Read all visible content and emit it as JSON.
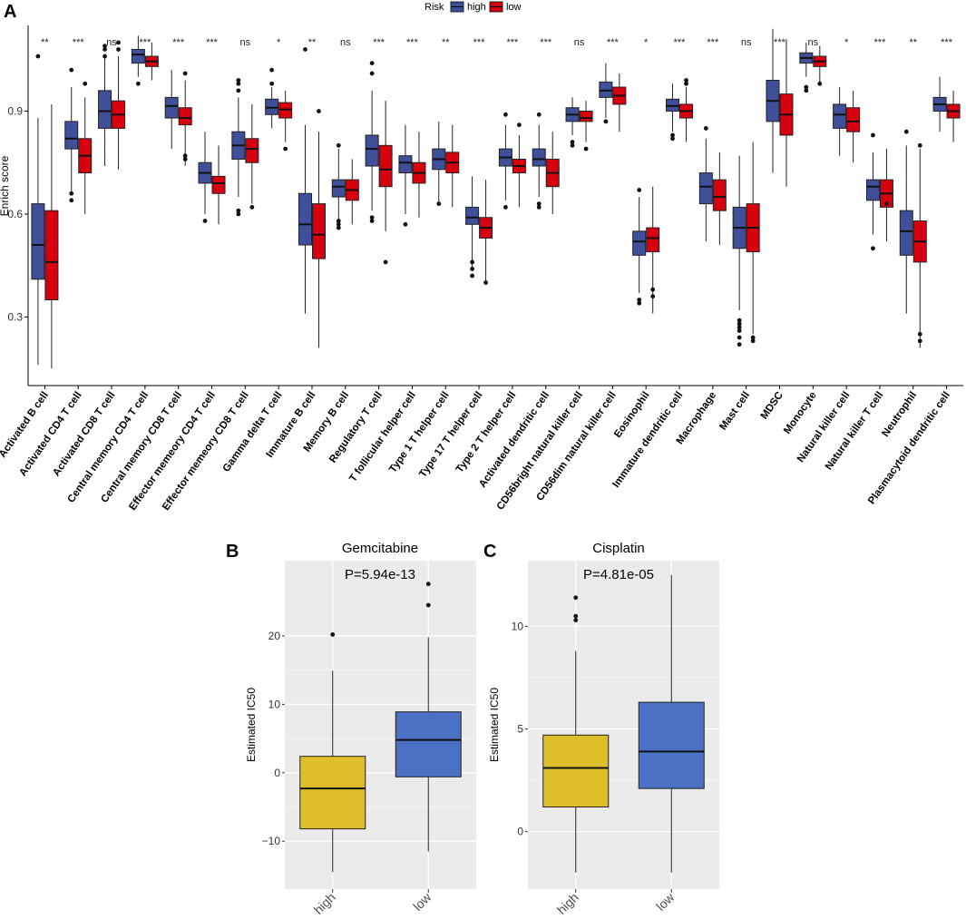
{
  "panel_labels": {
    "a": "A",
    "b": "B",
    "c": "C"
  },
  "colors": {
    "high": "#3F4F9A",
    "low": "#D7000F",
    "gem_high": "#DEBF2A",
    "gem_low": "#4A71C4",
    "panel_bg": "#EBEBEB"
  },
  "chart_data": [
    {
      "type": "boxplot",
      "title": "",
      "xlabel": "",
      "ylabel": "Enrich score",
      "ylim": [
        0.1,
        1.15
      ],
      "yticks": [
        0.3,
        0.6,
        0.9
      ],
      "yticklabels": [
        "0.3",
        "0.6",
        "0.9"
      ],
      "legend": {
        "title": "Risk",
        "entries": [
          "high",
          "low"
        ],
        "position": "top"
      },
      "categories": [
        "Activated B cell",
        "Activated CD4 T cell",
        "Activated CD8 T cell",
        "Central memory CD4 T cell",
        "Central memory CD8 T cell",
        "Effector memeory CD4 T cell",
        "Effector memeory CD8 T cell",
        "Gamma delta T cell",
        "Immature  B cell",
        "Memory B cell",
        "Regulatory T cell",
        "T follicular helper cell",
        "Type 1 T helper cell",
        "Type 17 T helper cell",
        "Type 2 T helper cell",
        "Activated dendritic cell",
        "CD56bright natural killer cell",
        "CD56dim natural killer cell",
        "Eosinophil",
        "Immature dendritic cell",
        "Macrophage",
        "Mast cell",
        "MDSC",
        "Monocyte",
        "Natural killer cell",
        "Natural killer T cell",
        "Neutrophil",
        "Plasmacytoid dendritic cell"
      ],
      "significance": [
        "**",
        "***",
        "ns",
        "***",
        "***",
        "***",
        "ns",
        "*",
        "**",
        "ns",
        "***",
        "***",
        "**",
        "***",
        "***",
        "***",
        "ns",
        "***",
        "*",
        "***",
        "***",
        "ns",
        "***",
        "ns",
        "*",
        "***",
        "**",
        "***"
      ],
      "series": [
        {
          "name": "high",
          "boxes": [
            [
              0.16,
              0.41,
              0.51,
              0.63,
              0.88
            ],
            [
              0.66,
              0.79,
              0.82,
              0.87,
              0.97
            ],
            [
              0.74,
              0.85,
              0.9,
              0.96,
              1.06
            ],
            [
              1.0,
              1.04,
              1.065,
              1.08,
              1.12
            ],
            [
              0.79,
              0.88,
              0.915,
              0.94,
              1.02
            ],
            [
              0.6,
              0.69,
              0.72,
              0.75,
              0.84
            ],
            [
              0.65,
              0.76,
              0.8,
              0.84,
              0.94
            ],
            [
              0.85,
              0.89,
              0.91,
              0.935,
              0.97
            ],
            [
              0.31,
              0.51,
              0.57,
              0.66,
              0.86
            ],
            [
              0.57,
              0.65,
              0.68,
              0.7,
              0.79
            ],
            [
              0.61,
              0.74,
              0.79,
              0.83,
              0.96
            ],
            [
              0.6,
              0.72,
              0.75,
              0.77,
              0.86
            ],
            [
              0.63,
              0.73,
              0.76,
              0.79,
              0.87
            ],
            [
              0.44,
              0.57,
              0.59,
              0.62,
              0.71
            ],
            [
              0.64,
              0.74,
              0.765,
              0.79,
              0.86
            ],
            [
              0.65,
              0.74,
              0.76,
              0.79,
              0.86
            ],
            [
              0.83,
              0.87,
              0.89,
              0.91,
              0.94
            ],
            [
              0.88,
              0.94,
              0.96,
              0.985,
              1.04
            ],
            [
              0.37,
              0.48,
              0.52,
              0.55,
              0.65
            ],
            [
              0.84,
              0.9,
              0.915,
              0.935,
              0.98
            ],
            [
              0.52,
              0.63,
              0.68,
              0.72,
              0.82
            ],
            [
              0.32,
              0.5,
              0.56,
              0.62,
              0.77
            ],
            [
              0.72,
              0.87,
              0.93,
              0.99,
              1.14
            ],
            [
              1.0,
              1.04,
              1.055,
              1.07,
              1.1
            ],
            [
              0.77,
              0.85,
              0.89,
              0.92,
              0.97
            ],
            [
              0.54,
              0.64,
              0.68,
              0.7,
              0.78
            ],
            [
              0.31,
              0.48,
              0.55,
              0.61,
              0.8
            ],
            [
              0.84,
              0.9,
              0.92,
              0.94,
              1.0
            ]
          ],
          "outliers": [
            [
              1.06
            ],
            [
              0.64,
              0.66,
              1.02
            ],
            [
              1.06,
              1.08,
              1.09
            ],
            [
              0.98
            ],
            [],
            [
              0.58
            ],
            [
              0.6,
              0.61,
              0.96,
              0.98,
              0.99
            ],
            [
              0.98,
              1.02
            ],
            [
              1.08
            ],
            [
              0.56,
              0.57,
              0.58,
              0.8
            ],
            [
              0.58,
              0.59,
              1.01,
              1.04
            ],
            [
              0.57
            ],
            [
              0.63
            ],
            [
              0.42,
              0.44,
              0.46
            ],
            [
              0.62,
              0.89
            ],
            [
              0.62,
              0.63,
              0.89
            ],
            [
              0.8,
              0.81
            ],
            [
              0.87
            ],
            [
              0.34,
              0.35,
              0.67
            ],
            [
              0.82,
              0.83
            ],
            [
              0.85
            ],
            [
              0.22,
              0.24,
              0.26,
              0.27,
              0.28,
              0.29
            ],
            [],
            [
              0.96,
              0.97
            ],
            [],
            [
              0.5,
              0.83
            ],
            [
              0.84
            ],
            []
          ]
        },
        {
          "name": "low",
          "boxes": [
            [
              0.15,
              0.35,
              0.46,
              0.61,
              0.92
            ],
            [
              0.6,
              0.72,
              0.77,
              0.82,
              0.94
            ],
            [
              0.73,
              0.85,
              0.89,
              0.93,
              1.06
            ],
            [
              0.99,
              1.03,
              1.045,
              1.06,
              1.1
            ],
            [
              0.74,
              0.86,
              0.88,
              0.91,
              0.99
            ],
            [
              0.57,
              0.66,
              0.69,
              0.71,
              0.8
            ],
            [
              0.63,
              0.75,
              0.79,
              0.82,
              0.92
            ],
            [
              0.81,
              0.88,
              0.905,
              0.925,
              0.96
            ],
            [
              0.21,
              0.47,
              0.54,
              0.63,
              0.84
            ],
            [
              0.57,
              0.64,
              0.67,
              0.7,
              0.76
            ],
            [
              0.55,
              0.68,
              0.73,
              0.8,
              0.93
            ],
            [
              0.59,
              0.69,
              0.72,
              0.75,
              0.84
            ],
            [
              0.62,
              0.72,
              0.75,
              0.78,
              0.86
            ],
            [
              0.4,
              0.53,
              0.56,
              0.59,
              0.7
            ],
            [
              0.62,
              0.72,
              0.74,
              0.76,
              0.83
            ],
            [
              0.6,
              0.68,
              0.72,
              0.76,
              0.84
            ],
            [
              0.81,
              0.87,
              0.88,
              0.9,
              0.93
            ],
            [
              0.84,
              0.92,
              0.945,
              0.97,
              1.01
            ],
            [
              0.31,
              0.49,
              0.53,
              0.56,
              0.68
            ],
            [
              0.81,
              0.88,
              0.9,
              0.92,
              0.97
            ],
            [
              0.51,
              0.61,
              0.65,
              0.7,
              0.78
            ],
            [
              0.25,
              0.49,
              0.56,
              0.63,
              0.81
            ],
            [
              0.68,
              0.83,
              0.89,
              0.95,
              1.11
            ],
            [
              0.98,
              1.03,
              1.045,
              1.06,
              1.09
            ],
            [
              0.75,
              0.84,
              0.87,
              0.91,
              0.96
            ],
            [
              0.52,
              0.62,
              0.66,
              0.7,
              0.79
            ],
            [
              0.21,
              0.46,
              0.52,
              0.58,
              0.79
            ],
            [
              0.81,
              0.88,
              0.9,
              0.92,
              0.96
            ]
          ],
          "outliers": [
            [],
            [
              0.98
            ],
            [
              1.08,
              1.1
            ],
            [],
            [
              0.76,
              0.77,
              1.01
            ],
            [],
            [
              0.62
            ],
            [
              0.79
            ],
            [
              0.9
            ],
            [],
            [
              0.46
            ],
            [],
            [],
            [
              0.4
            ],
            [
              0.86
            ],
            [],
            [
              0.79
            ],
            [],
            [
              0.36,
              0.38
            ],
            [
              0.98,
              0.99
            ],
            [],
            [
              0.23,
              0.24
            ],
            [],
            [
              0.98
            ],
            [],
            [
              0.63
            ],
            [
              0.23,
              0.25,
              0.8
            ],
            []
          ]
        }
      ]
    },
    {
      "type": "boxplot",
      "title": "Gemcitabine",
      "annotation": "P=5.94e-13",
      "xlabel": "",
      "ylabel": "Estimated IC50",
      "ylim": [
        -17,
        31
      ],
      "yticks": [
        -10,
        0,
        10,
        20
      ],
      "yticklabels": [
        "−10",
        "0",
        "10",
        "20"
      ],
      "categories": [
        "high",
        "low"
      ],
      "boxes": [
        [
          -14.5,
          -8.2,
          -2.3,
          2.4,
          14.9
        ],
        [
          -11.5,
          -0.6,
          4.8,
          8.9,
          19.8
        ]
      ],
      "outliers": [
        [
          20.2
        ],
        [
          24.5,
          27.6
        ]
      ]
    },
    {
      "type": "boxplot",
      "title": "Cisplatin",
      "annotation": "P=4.81e-05",
      "xlabel": "",
      "ylabel": "Estimated IC50",
      "ylim": [
        -2.8,
        13.2
      ],
      "yticks": [
        0,
        5,
        10
      ],
      "yticklabels": [
        "0",
        "5",
        "10"
      ],
      "categories": [
        "high",
        "low"
      ],
      "boxes": [
        [
          -2.0,
          1.2,
          3.1,
          4.7,
          8.8
        ],
        [
          -2.0,
          2.1,
          3.9,
          6.3,
          12.5
        ]
      ],
      "outliers": [
        [
          10.3,
          10.5,
          11.4
        ],
        []
      ]
    }
  ]
}
